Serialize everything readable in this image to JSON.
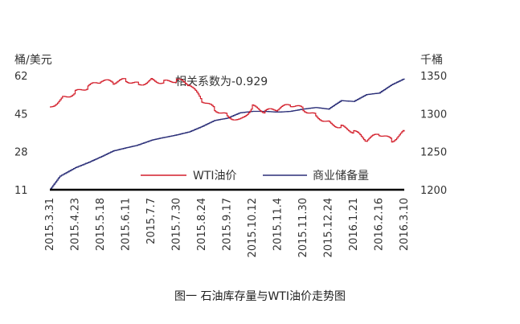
{
  "caption": "图一 石油库存量与WTI油价走势图",
  "colors": {
    "wti": "#d31f2b",
    "inventory": "#2b2f78",
    "axis": "#000000"
  },
  "chart_data": {
    "type": "line",
    "annotation": "相关系数为-0.929",
    "left_axis": {
      "unit": "桶/美元",
      "ylim": [
        11,
        62
      ],
      "ticks": [
        62,
        45,
        28,
        11
      ]
    },
    "right_axis": {
      "unit": "千桶",
      "ylim": [
        1200,
        1350
      ],
      "ticks": [
        1350,
        1300,
        1250,
        1200
      ]
    },
    "x_ticks": [
      "2015.3.31",
      "2015.4.23",
      "2015.5.18",
      "2015.6.11",
      "2015.7.7",
      "2015.7.30",
      "2015.8.24",
      "2015.9.17",
      "2015.10.12",
      "2015.11.4",
      "2015.11.30",
      "2015.12.24",
      "2016.1.21",
      "2016.2.16",
      "2016.3.10"
    ],
    "legend": {
      "placement": "center"
    },
    "series": [
      {
        "name": "WTI油价",
        "axis": "left",
        "x": [
          0,
          0.5,
          1,
          1.5,
          2,
          2.5,
          3,
          3.5,
          4,
          4.5,
          5,
          5.5,
          6,
          6.5,
          7,
          7.5,
          8,
          8.5,
          9,
          9.5,
          10,
          10.5,
          11,
          11.5,
          12,
          12.5,
          13,
          13.5,
          14
        ],
        "values": [
          48,
          52,
          54.5,
          57,
          59.5,
          59,
          60,
          58,
          60,
          59,
          60,
          58,
          51,
          47,
          44,
          42,
          48,
          46,
          47,
          49,
          47,
          44,
          41,
          39,
          37,
          33,
          36,
          33,
          37
        ]
      },
      {
        "name": "商业储备量",
        "axis": "right",
        "x": [
          0,
          0.4,
          1,
          1.6,
          2,
          2.5,
          3,
          3.4,
          4,
          4.4,
          5,
          5.5,
          6,
          6.5,
          7,
          7.5,
          8,
          8.5,
          9,
          9.5,
          10,
          10.5,
          11,
          11.5,
          12,
          12.5,
          13,
          13.5,
          14
        ],
        "values": [
          1200,
          1218,
          1229,
          1237,
          1243,
          1251,
          1255,
          1258,
          1265,
          1268,
          1272,
          1276,
          1283,
          1291,
          1294,
          1301,
          1303,
          1303,
          1302,
          1303,
          1306,
          1308,
          1306,
          1317,
          1316,
          1325,
          1327,
          1338,
          1346
        ]
      }
    ]
  }
}
